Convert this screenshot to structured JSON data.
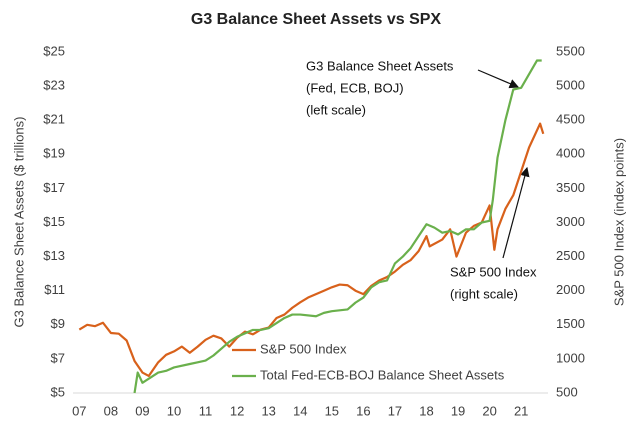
{
  "chart_data": {
    "type": "line",
    "title": "G3 Balance Sheet Assets vs SPX",
    "ylabel": "G3 Balance Sheet Assets ($ trillions)",
    "y2label": "S&P 500 Index (index points)",
    "xlim": [
      2006.8,
      2021.85
    ],
    "xticks": [
      {
        "value": 2007,
        "label": "07"
      },
      {
        "value": 2008,
        "label": "08"
      },
      {
        "value": 2009,
        "label": "09"
      },
      {
        "value": 2010,
        "label": "10"
      },
      {
        "value": 2011,
        "label": "11"
      },
      {
        "value": 2012,
        "label": "12"
      },
      {
        "value": 2013,
        "label": "13"
      },
      {
        "value": 2014,
        "label": "14"
      },
      {
        "value": 2015,
        "label": "15"
      },
      {
        "value": 2016,
        "label": "16"
      },
      {
        "value": 2017,
        "label": "17"
      },
      {
        "value": 2018,
        "label": "18"
      },
      {
        "value": 2019,
        "label": "19"
      },
      {
        "value": 2020,
        "label": "20"
      },
      {
        "value": 2021,
        "label": "21"
      }
    ],
    "ylim": [
      5,
      25
    ],
    "yticks": [
      {
        "value": 5,
        "label": "$5"
      },
      {
        "value": 7,
        "label": "$7"
      },
      {
        "value": 9,
        "label": "$9"
      },
      {
        "value": 11,
        "label": "$11"
      },
      {
        "value": 13,
        "label": "$13"
      },
      {
        "value": 15,
        "label": "$15"
      },
      {
        "value": 17,
        "label": "$17"
      },
      {
        "value": 19,
        "label": "$19"
      },
      {
        "value": 21,
        "label": "$21"
      },
      {
        "value": 23,
        "label": "$23"
      },
      {
        "value": 25,
        "label": "$25"
      }
    ],
    "y2lim": [
      500,
      5500
    ],
    "y2ticks": [
      500,
      1000,
      1500,
      2000,
      2500,
      3000,
      3500,
      4000,
      4500,
      5000,
      5500
    ],
    "grid": false,
    "legend": "lower-left",
    "series": [
      {
        "name": "S&P 500 Index",
        "color": "#d8611b",
        "axis": "y2",
        "x": [
          2007.0,
          2007.25,
          2007.5,
          2007.75,
          2008.0,
          2008.25,
          2008.5,
          2008.75,
          2009.0,
          2009.2,
          2009.5,
          2009.75,
          2010.0,
          2010.25,
          2010.5,
          2010.75,
          2011.0,
          2011.25,
          2011.5,
          2011.75,
          2012.0,
          2012.25,
          2012.5,
          2012.75,
          2013.0,
          2013.25,
          2013.5,
          2013.75,
          2014.0,
          2014.25,
          2014.5,
          2014.75,
          2015.0,
          2015.25,
          2015.5,
          2015.75,
          2016.0,
          2016.25,
          2016.5,
          2016.75,
          2017.0,
          2017.25,
          2017.5,
          2017.75,
          2018.0,
          2018.1,
          2018.5,
          2018.75,
          2018.95,
          2019.25,
          2019.5,
          2019.75,
          2020.0,
          2020.15,
          2020.25,
          2020.5,
          2020.75,
          2021.0,
          2021.25,
          2021.5,
          2021.6,
          2021.7
        ],
        "values": [
          1430,
          1500,
          1480,
          1530,
          1380,
          1370,
          1270,
          970,
          800,
          750,
          950,
          1060,
          1110,
          1180,
          1090,
          1180,
          1280,
          1340,
          1300,
          1180,
          1310,
          1400,
          1360,
          1430,
          1460,
          1600,
          1650,
          1750,
          1830,
          1900,
          1950,
          2000,
          2050,
          2090,
          2080,
          2000,
          1950,
          2070,
          2150,
          2200,
          2280,
          2380,
          2450,
          2580,
          2800,
          2650,
          2750,
          2900,
          2500,
          2850,
          2950,
          3000,
          3250,
          2600,
          2900,
          3200,
          3400,
          3750,
          4100,
          4350,
          4450,
          4300
        ]
      },
      {
        "name": "Total Fed-ECB-BOJ Balance Sheet Assets",
        "color": "#6ab04c",
        "x": [
          2008.75,
          2008.85,
          2009.0,
          2009.25,
          2009.5,
          2009.75,
          2010.0,
          2010.5,
          2010.75,
          2011.0,
          2011.25,
          2011.5,
          2011.75,
          2012.0,
          2012.25,
          2012.5,
          2012.75,
          2013.0,
          2013.25,
          2013.5,
          2013.75,
          2014.0,
          2014.5,
          2014.75,
          2015.0,
          2015.5,
          2015.75,
          2016.0,
          2016.25,
          2016.5,
          2016.75,
          2017.0,
          2017.25,
          2017.5,
          2017.75,
          2018.0,
          2018.25,
          2018.5,
          2018.75,
          2019.0,
          2019.25,
          2019.5,
          2019.75,
          2020.0,
          2020.1,
          2020.25,
          2020.5,
          2020.75,
          2021.0,
          2021.25,
          2021.5,
          2021.65
        ],
        "values": [
          5.0,
          6.2,
          5.6,
          5.9,
          6.2,
          6.3,
          6.5,
          6.7,
          6.8,
          6.9,
          7.2,
          7.6,
          8.0,
          8.3,
          8.5,
          8.7,
          8.7,
          8.8,
          9.1,
          9.4,
          9.6,
          9.6,
          9.5,
          9.7,
          9.8,
          9.9,
          10.3,
          10.6,
          11.2,
          11.5,
          11.6,
          12.6,
          13.0,
          13.5,
          14.2,
          14.9,
          14.7,
          14.4,
          14.5,
          14.3,
          14.6,
          14.6,
          15.0,
          15.1,
          16.3,
          18.8,
          21.0,
          22.8,
          22.9,
          23.7,
          24.5,
          24.5
        ]
      }
    ],
    "annotations": [
      {
        "lines": [
          "G3 Balance Sheet Assets",
          "(Fed, ECB, BOJ)",
          "(left scale)"
        ]
      },
      {
        "lines": [
          "S&P 500 Index",
          "(right scale)"
        ]
      }
    ]
  }
}
